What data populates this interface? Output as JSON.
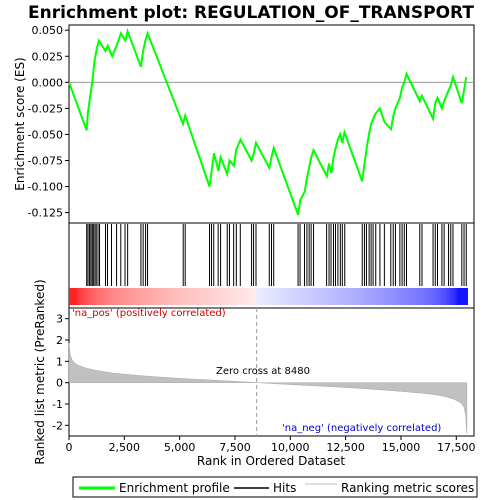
{
  "chart_data": {
    "type": "line",
    "title": "Enrichment plot: REGULATION_OF_TRANSPORT",
    "x_range": [
      0,
      18300
    ],
    "x_ticks": [
      "0",
      "2,500",
      "5,000",
      "7,500",
      "10,000",
      "12,500",
      "15,000",
      "17,500"
    ],
    "x_tick_values": [
      0,
      2500,
      5000,
      7500,
      10000,
      12500,
      15000,
      17500
    ],
    "xlabel": "Rank in Ordered Dataset",
    "es_panel": {
      "ylabel": "Enrichment score (ES)",
      "ylim": [
        -0.135,
        0.055
      ],
      "y_ticks": [
        "0.050",
        "0.025",
        "0.000",
        "-0.025",
        "-0.050",
        "-0.075",
        "-0.100",
        "-0.125"
      ],
      "y_tick_values": [
        0.05,
        0.025,
        0.0,
        -0.025,
        -0.05,
        -0.075,
        -0.1,
        -0.125
      ],
      "series": [
        {
          "name": "Enrichment profile",
          "color": "#00ff00",
          "points": [
            [
              0,
              0.0
            ],
            [
              800,
              -0.046
            ],
            [
              850,
              -0.03
            ],
            [
              950,
              -0.015
            ],
            [
              1050,
              0.0
            ],
            [
              1150,
              0.02
            ],
            [
              1250,
              0.032
            ],
            [
              1350,
              0.04
            ],
            [
              1650,
              0.03
            ],
            [
              1750,
              0.035
            ],
            [
              1950,
              0.025
            ],
            [
              2150,
              0.035
            ],
            [
              2350,
              0.047
            ],
            [
              2550,
              0.04
            ],
            [
              2650,
              0.049
            ],
            [
              3250,
              0.015
            ],
            [
              3350,
              0.03
            ],
            [
              3450,
              0.04
            ],
            [
              3550,
              0.047
            ],
            [
              5150,
              -0.04
            ],
            [
              5250,
              -0.032
            ],
            [
              6350,
              -0.1
            ],
            [
              6450,
              -0.085
            ],
            [
              6550,
              -0.068
            ],
            [
              6750,
              -0.085
            ],
            [
              6850,
              -0.072
            ],
            [
              7150,
              -0.088
            ],
            [
              7250,
              -0.075
            ],
            [
              7450,
              -0.08
            ],
            [
              7550,
              -0.065
            ],
            [
              7750,
              -0.055
            ],
            [
              8250,
              -0.075
            ],
            [
              8350,
              -0.068
            ],
            [
              8450,
              -0.058
            ],
            [
              9050,
              -0.082
            ],
            [
              9150,
              -0.072
            ],
            [
              9250,
              -0.063
            ],
            [
              10350,
              -0.127
            ],
            [
              10450,
              -0.113
            ],
            [
              10650,
              -0.105
            ],
            [
              10750,
              -0.092
            ],
            [
              10850,
              -0.082
            ],
            [
              10950,
              -0.072
            ],
            [
              11050,
              -0.065
            ],
            [
              11650,
              -0.09
            ],
            [
              11750,
              -0.078
            ],
            [
              11850,
              -0.087
            ],
            [
              11950,
              -0.072
            ],
            [
              12050,
              -0.063
            ],
            [
              12150,
              -0.055
            ],
            [
              12250,
              -0.05
            ],
            [
              12350,
              -0.058
            ],
            [
              12450,
              -0.048
            ],
            [
              13250,
              -0.095
            ],
            [
              13350,
              -0.078
            ],
            [
              13450,
              -0.063
            ],
            [
              13550,
              -0.05
            ],
            [
              13650,
              -0.04
            ],
            [
              13750,
              -0.035
            ],
            [
              13850,
              -0.03
            ],
            [
              14050,
              -0.025
            ],
            [
              14250,
              -0.038
            ],
            [
              14550,
              -0.045
            ],
            [
              14650,
              -0.033
            ],
            [
              14750,
              -0.025
            ],
            [
              14950,
              -0.015
            ],
            [
              15050,
              -0.005
            ],
            [
              15150,
              0.0
            ],
            [
              15250,
              0.008
            ],
            [
              15850,
              -0.018
            ],
            [
              15950,
              -0.013
            ],
            [
              16450,
              -0.035
            ],
            [
              16550,
              -0.02
            ],
            [
              16650,
              -0.015
            ],
            [
              16850,
              -0.025
            ],
            [
              16950,
              -0.018
            ],
            [
              17150,
              -0.008
            ],
            [
              17250,
              -0.003
            ],
            [
              17350,
              0.005
            ],
            [
              17750,
              -0.02
            ],
            [
              17850,
              -0.008
            ],
            [
              17950,
              0.005
            ]
          ]
        }
      ]
    },
    "hits": [
      800,
      860,
      930,
      990,
      1050,
      1100,
      1170,
      1230,
      1310,
      1380,
      1650,
      1740,
      1920,
      2150,
      2340,
      2530,
      2650,
      3250,
      3350,
      3460,
      3550,
      5160,
      5250,
      6350,
      6440,
      6540,
      6740,
      6850,
      7150,
      7250,
      7440,
      7560,
      7740,
      8250,
      8340,
      8450,
      9050,
      9150,
      9250,
      10350,
      10440,
      10640,
      10750,
      10850,
      10940,
      11050,
      11640,
      11750,
      11840,
      11950,
      12040,
      12150,
      12260,
      12350,
      12460,
      13250,
      13350,
      13440,
      13560,
      13650,
      13740,
      13860,
      14050,
      14250,
      14540,
      14650,
      14750,
      14950,
      15050,
      15150,
      15250,
      15850,
      15950,
      16450,
      16550,
      16650,
      16850,
      16950,
      17150,
      17250,
      17350,
      17750,
      17850,
      17950
    ],
    "rank_metric_panel": {
      "ylabel": "Ranked list metric (PreRanked)",
      "ylim": [
        -2.5,
        3.5
      ],
      "y_ticks": [
        "3",
        "2",
        "1",
        "0",
        "-1",
        "-2"
      ],
      "y_tick_values": [
        3,
        2,
        1,
        0,
        -1,
        -2
      ],
      "series": [
        {
          "name": "Ranking metric scores",
          "color": "#c0c0c0",
          "points": [
            [
              0,
              1.85
            ],
            [
              60,
              1.3
            ],
            [
              150,
              1.05
            ],
            [
              300,
              0.88
            ],
            [
              500,
              0.78
            ],
            [
              800,
              0.68
            ],
            [
              1200,
              0.58
            ],
            [
              2000,
              0.45
            ],
            [
              3000,
              0.35
            ],
            [
              4000,
              0.27
            ],
            [
              5000,
              0.2
            ],
            [
              6000,
              0.15
            ],
            [
              7000,
              0.09
            ],
            [
              8000,
              0.03
            ],
            [
              8480,
              0.0
            ],
            [
              9000,
              -0.03
            ],
            [
              10000,
              -0.09
            ],
            [
              11000,
              -0.14
            ],
            [
              12000,
              -0.2
            ],
            [
              13000,
              -0.26
            ],
            [
              14000,
              -0.33
            ],
            [
              15000,
              -0.41
            ],
            [
              16000,
              -0.5
            ],
            [
              16500,
              -0.56
            ],
            [
              17000,
              -0.65
            ],
            [
              17400,
              -0.78
            ],
            [
              17700,
              -0.95
            ],
            [
              17850,
              -1.15
            ],
            [
              17920,
              -1.5
            ],
            [
              17960,
              -2.2
            ],
            [
              17980,
              -2.4
            ]
          ]
        }
      ],
      "zero_cross_rank": 8480,
      "zero_cross_label": "Zero cross at 8480",
      "pos_label": "'na_pos' (positively correlated)",
      "neg_label": "'na_neg' (negatively correlated)",
      "pos_color": "#cc0000",
      "neg_color": "#0000cc"
    },
    "legend": {
      "placement": "bottom",
      "entries": [
        {
          "label": "Enrichment profile",
          "color": "#00ff00"
        },
        {
          "label": "Hits",
          "color": "#000000"
        },
        {
          "label": "Ranking metric scores",
          "color": "#c0c0c0"
        }
      ]
    }
  }
}
